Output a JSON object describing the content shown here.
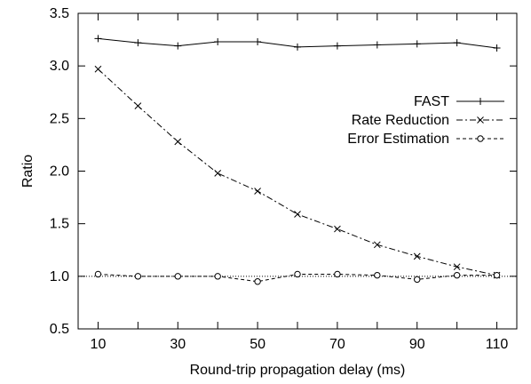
{
  "chart_data": {
    "type": "line",
    "xlabel": "Round-trip propagation delay (ms)",
    "ylabel": "Ratio",
    "xlim": [
      5,
      115
    ],
    "ylim": [
      0.5,
      3.5
    ],
    "xticks": [
      10,
      30,
      50,
      70,
      90,
      110
    ],
    "xtick_labels": [
      "10",
      "30",
      "50",
      "70",
      "90",
      "110"
    ],
    "yticks": [
      0.5,
      1.0,
      1.5,
      2.0,
      2.5,
      3.0,
      3.5
    ],
    "ytick_labels": [
      "0.5",
      "1.0",
      "1.5",
      "2.0",
      "2.5",
      "3.0",
      "3.5"
    ],
    "grid": false,
    "legend_position": "right",
    "reference_line": {
      "y": 1.0,
      "style": "dotted"
    },
    "x": [
      10,
      20,
      30,
      40,
      50,
      60,
      70,
      80,
      90,
      100,
      110
    ],
    "series": [
      {
        "name": "FAST",
        "marker": "plus",
        "dash": "solid",
        "values": [
          3.26,
          3.22,
          3.19,
          3.23,
          3.23,
          3.18,
          3.19,
          3.2,
          3.21,
          3.22,
          3.17
        ]
      },
      {
        "name": "Rate Reduction",
        "marker": "cross",
        "dash": "dashdot",
        "values": [
          2.97,
          2.62,
          2.28,
          1.98,
          1.81,
          1.59,
          1.45,
          1.3,
          1.19,
          1.09,
          1.01
        ]
      },
      {
        "name": "Error Estimation",
        "marker": "circle",
        "dash": "dashed",
        "values": [
          1.02,
          1.0,
          1.0,
          1.0,
          0.95,
          1.02,
          1.02,
          1.01,
          0.97,
          1.01,
          1.01
        ]
      }
    ]
  }
}
